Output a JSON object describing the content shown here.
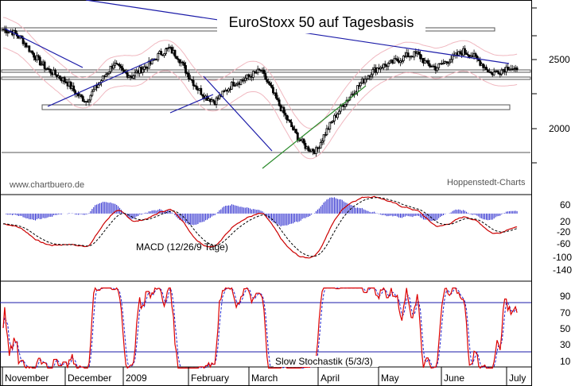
{
  "chart_data": [
    {
      "type": "candlestick",
      "title": "EuroStoxx 50 auf Tagesbasis",
      "ylim": [
        1780,
        2900
      ],
      "yticks": [
        "2500",
        "2000"
      ],
      "watermark_left": "www.chartbuero.de",
      "watermark_right": "Hoppenstedt-Charts",
      "months": [
        "November",
        "December",
        "2009",
        "February",
        "March",
        "April",
        "May",
        "June",
        "July"
      ],
      "close_approx": [
        2720,
        2700,
        2650,
        2560,
        2480,
        2420,
        2380,
        2330,
        2250,
        2200,
        2290,
        2380,
        2470,
        2410,
        2380,
        2430,
        2470,
        2540,
        2580,
        2520,
        2400,
        2300,
        2230,
        2200,
        2260,
        2330,
        2350,
        2390,
        2420,
        2300,
        2170,
        2050,
        1940,
        1860,
        1840,
        1970,
        2080,
        2180,
        2260,
        2340,
        2410,
        2450,
        2470,
        2500,
        2530,
        2540,
        2470,
        2440,
        2480,
        2520,
        2560,
        2530,
        2470,
        2400,
        2420,
        2450,
        2400
      ]
    },
    {
      "type": "line",
      "label": "MACD (12/26/9 Tage)",
      "yticks": [
        "60",
        "20",
        "-20",
        "-60",
        "-100",
        "-140"
      ],
      "ylim": [
        -160,
        80
      ]
    },
    {
      "type": "line",
      "label": "Slow Stochastik (5/3/3)",
      "yticks": [
        "90",
        "70",
        "50",
        "30",
        "10"
      ],
      "ylim": [
        0,
        100
      ],
      "levels": [
        80,
        20
      ]
    }
  ],
  "colors": {
    "candle": "#000000",
    "trend_blue": "#1a1aa8",
    "trend_green": "#2a8a2a",
    "bollinger": "#f0b8c0",
    "macd_line": "#cc0000",
    "signal_line": "#000000",
    "histogram": "#2222cc",
    "stoch_k": "#dd0000",
    "stoch_d": "#2222cc",
    "panel_bg": "#ffffff"
  }
}
